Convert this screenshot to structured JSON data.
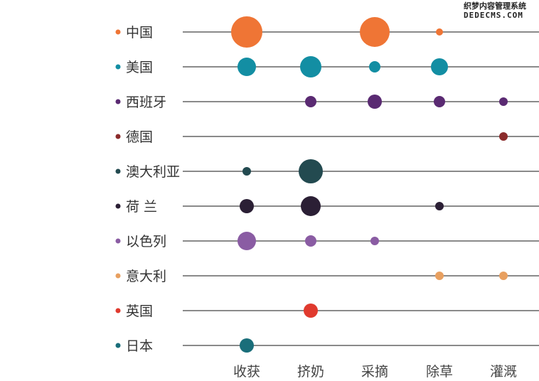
{
  "chart_data": {
    "type": "scatter",
    "title": "",
    "categories": [
      "收获",
      "挤奶",
      "采摘",
      "除草",
      "灌溉"
    ],
    "series": [
      {
        "name": "中国",
        "color": "#ef7535",
        "values": [
          22,
          0,
          21,
          5,
          0
        ]
      },
      {
        "name": "美国",
        "color": "#138ea3",
        "values": [
          13,
          15,
          8,
          12,
          0
        ]
      },
      {
        "name": "西班牙",
        "color": "#5a2a72",
        "values": [
          0,
          8,
          10,
          8,
          6
        ]
      },
      {
        "name": "德国",
        "color": "#8b2b2b",
        "values": [
          0,
          0,
          0,
          0,
          6
        ]
      },
      {
        "name": "澳大利亚",
        "color": "#234a50",
        "values": [
          6,
          17,
          0,
          0,
          0
        ]
      },
      {
        "name": "荷 兰",
        "color": "#2b1f35",
        "values": [
          10,
          14,
          0,
          6,
          0
        ]
      },
      {
        "name": "以色列",
        "color": "#8a5ca3",
        "values": [
          13,
          8,
          6,
          0,
          0
        ]
      },
      {
        "name": "意大利",
        "color": "#e8a060",
        "values": [
          0,
          0,
          0,
          6,
          6
        ]
      },
      {
        "name": "英国",
        "color": "#e03a2e",
        "values": [
          0,
          10,
          0,
          0,
          0
        ]
      },
      {
        "name": "日本",
        "color": "#1a6e7a",
        "values": [
          10,
          0,
          0,
          0,
          0
        ]
      }
    ],
    "value_meaning": "relative bubble size",
    "grid": false
  },
  "watermark": {
    "line1": "织梦内容管理系统",
    "line2": "DEDECMS.COM"
  }
}
